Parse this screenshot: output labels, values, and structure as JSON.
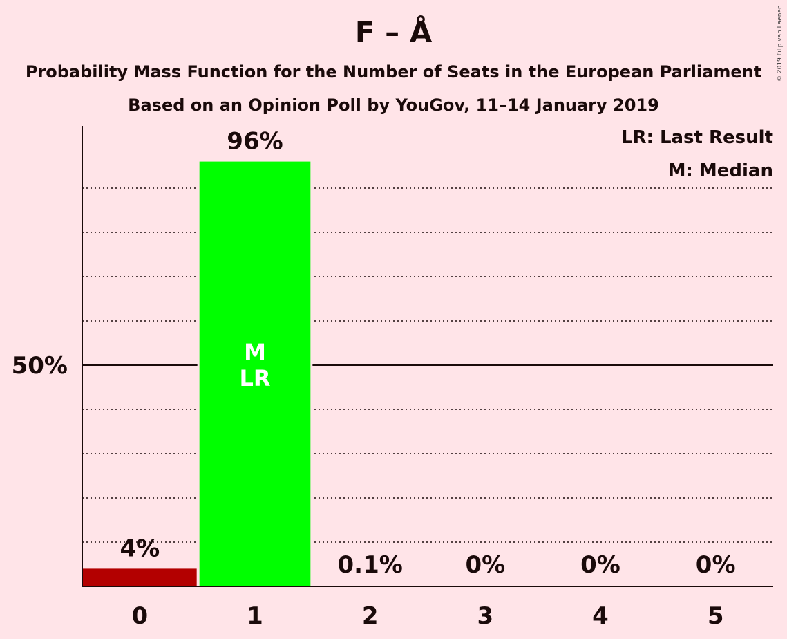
{
  "title": "F – Å",
  "subtitle": "Probability Mass Function for the Number of Seats in the European Parliament",
  "subtitle2": "Based on an Opinion Poll by YouGov, 11–14 January 2019",
  "copyright": "© 2019 Filip van Laenen",
  "legend": {
    "last_result": "LR: Last Result",
    "median": "M: Median"
  },
  "colors": {
    "background": "#FFE4E8",
    "last_result_bar": "#B30000",
    "bar": "#00FF00"
  },
  "chart_data": {
    "type": "bar",
    "categories": [
      "0",
      "1",
      "2",
      "3",
      "4",
      "5"
    ],
    "values": [
      4,
      96,
      0.1,
      0,
      0,
      0
    ],
    "value_labels": [
      "4%",
      "96%",
      "0.1%",
      "0%",
      "0%",
      "0%"
    ],
    "ylim": [
      0,
      105
    ],
    "ytick_labels": [
      {
        "value": 50,
        "label": "50%"
      }
    ],
    "grid": "dotted every 10%",
    "bar_annotations": [
      {
        "category": "1",
        "lines": [
          "M",
          "LR"
        ]
      }
    ]
  }
}
